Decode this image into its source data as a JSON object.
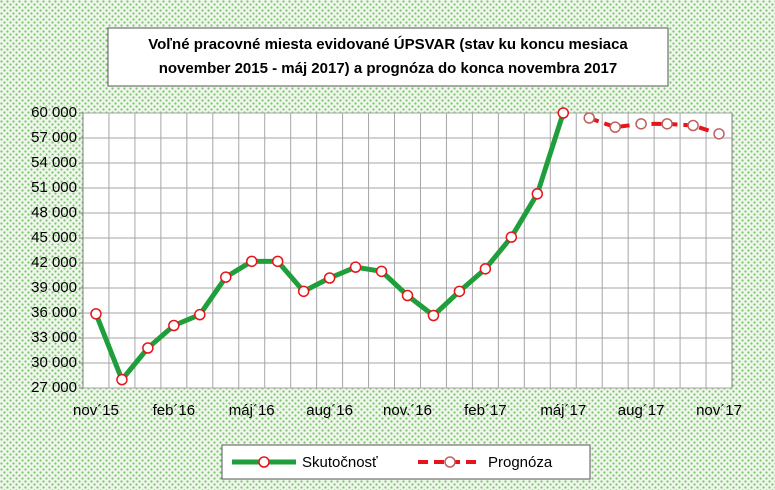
{
  "chart_data": {
    "type": "line",
    "title": [
      "Voľné pracovné miesta evidované ÚPSVAR (stav ku koncu mesiaca",
      "november 2015 - máj 2017) a prognóza do konca novembra 2017"
    ],
    "categories": [
      "nov´15",
      null,
      null,
      "feb´16",
      null,
      null,
      "máj´16",
      null,
      null,
      "aug´16",
      null,
      null,
      "nov.´16",
      null,
      null,
      "feb´17",
      null,
      null,
      "máj´17",
      null,
      null,
      "aug´17",
      null,
      null,
      "nov´17"
    ],
    "series": [
      {
        "name": "Skutočnosť",
        "color": "#1f9e3c",
        "dashed": false,
        "values": [
          35900,
          28000,
          31800,
          34500,
          35800,
          40300,
          42200,
          42200,
          38600,
          40200,
          41500,
          41000,
          38100,
          35700,
          38600,
          41300,
          45100,
          50300,
          60000,
          null,
          null,
          null,
          null,
          null,
          null
        ]
      },
      {
        "name": "Prognóza",
        "color": "#e8141b",
        "dashed": true,
        "values": [
          null,
          null,
          null,
          null,
          null,
          null,
          null,
          null,
          null,
          null,
          null,
          null,
          null,
          null,
          null,
          null,
          null,
          null,
          null,
          59400,
          58300,
          58700,
          58700,
          58500,
          57500
        ]
      }
    ],
    "ylim": [
      27000,
      60000
    ],
    "yticks": [
      {
        "value": 27000,
        "label": "27 000"
      },
      {
        "value": 30000,
        "label": "30 000"
      },
      {
        "value": 33000,
        "label": "33 000"
      },
      {
        "value": 36000,
        "label": "36 000"
      },
      {
        "value": 39000,
        "label": "39 000"
      },
      {
        "value": 42000,
        "label": "42 000"
      },
      {
        "value": 45000,
        "label": "45 000"
      },
      {
        "value": 48000,
        "label": "48 000"
      },
      {
        "value": 51000,
        "label": "51 000"
      },
      {
        "value": 54000,
        "label": "54 000"
      },
      {
        "value": 57000,
        "label": "57 000"
      },
      {
        "value": 60000,
        "label": "60 000"
      }
    ],
    "grid": true,
    "legend": "bottom"
  }
}
